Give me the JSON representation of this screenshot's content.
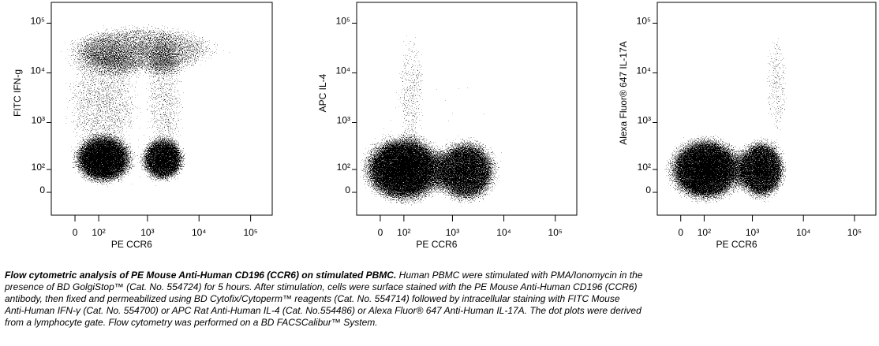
{
  "chart_data": [
    {
      "type": "scatter",
      "xlabel": "PE CCR6",
      "ylabel": "FITC IFN-g",
      "scale": "logicle",
      "xlim": [
        -100,
        262144
      ],
      "ylim": [
        -100,
        262144
      ],
      "xticks": [
        0,
        {
          "value": 100,
          "label": "10²"
        },
        {
          "value": 1000,
          "label": "10³"
        },
        {
          "value": 10000,
          "label": "10⁴"
        },
        {
          "value": 100000,
          "label": "10⁵"
        }
      ],
      "yticks": [
        0,
        {
          "value": 100,
          "label": "10²"
        },
        {
          "value": 1000,
          "label": "10³"
        },
        {
          "value": 10000,
          "label": "10⁴"
        },
        {
          "value": 100000,
          "label": "10⁵"
        }
      ],
      "populations": [
        {
          "x": 130,
          "y": 170
        },
        {
          "x": 2000,
          "y": 170
        },
        {
          "x": 800,
          "y": 30000
        },
        {
          "x": 120,
          "y": 3000
        },
        {
          "x": 2200,
          "y": 3000
        },
        {
          "x": 400,
          "y": 800
        }
      ]
    },
    {
      "type": "scatter",
      "xlabel": "PE CCR6",
      "ylabel": "APC IL-4",
      "scale": "logicle",
      "xlim": [
        -100,
        262144
      ],
      "ylim": [
        -100,
        262144
      ],
      "xticks": [
        0,
        {
          "value": 100,
          "label": "10²"
        },
        {
          "value": 1000,
          "label": "10³"
        },
        {
          "value": 10000,
          "label": "10⁴"
        },
        {
          "value": 100000,
          "label": "10⁵"
        }
      ],
      "yticks": [
        0,
        {
          "value": 100,
          "label": "10²"
        },
        {
          "value": 1000,
          "label": "10³"
        },
        {
          "value": 10000,
          "label": "10⁴"
        },
        {
          "value": 100000,
          "label": "10⁵"
        }
      ],
      "populations": [
        {
          "x": 100,
          "y": 100
        },
        {
          "x": 1800,
          "y": 90
        },
        {
          "x": 150,
          "y": 6000
        },
        {
          "x": 600,
          "y": 600
        }
      ]
    },
    {
      "type": "scatter",
      "xlabel": "PE CCR6",
      "ylabel": "Alexa Fluor® 647 IL-17A",
      "scale": "logicle",
      "xlim": [
        -100,
        262144
      ],
      "ylim": [
        -100,
        262144
      ],
      "xticks": [
        0,
        {
          "value": 100,
          "label": "10²"
        },
        {
          "value": 1000,
          "label": "10³"
        },
        {
          "value": 10000,
          "label": "10⁴"
        },
        {
          "value": 100000,
          "label": "10⁵"
        }
      ],
      "yticks": [
        0,
        {
          "value": 100,
          "label": "10²"
        },
        {
          "value": 1000,
          "label": "10³"
        },
        {
          "value": 10000,
          "label": "10⁴"
        },
        {
          "value": 100000,
          "label": "10⁵"
        }
      ],
      "populations": [
        {
          "x": 110,
          "y": 100
        },
        {
          "x": 1500,
          "y": 100
        },
        {
          "x": 3000,
          "y": 6000
        }
      ]
    }
  ],
  "caption": {
    "title": "Flow cytometric analysis of PE Mouse Anti-Human CD196 (CCR6) on stimulated PBMC.",
    "lines": [
      "Human PBMC were stimulated with PMA/Ionomycin in the",
      "presence of BD GolgiStop™ (Cat. No. 554724) for 5 hours. After stimulation, cells were surface stained with the PE Mouse Anti-Human CD196 (CCR6)",
      "antibody, then fixed and permeabilized using BD Cytofix/Cytoperm™ reagents (Cat. No. 554714) followed by intracellular staining with FITC Mouse",
      "Anti-Human IFN-γ (Cat. No. 554700) or APC Rat Anti-Human IL-4 (Cat. No.554486) or Alexa Fluor® 647 Anti-Human IL-17A. The dot plots were derived",
      "from a lymphocyte gate. Flow cytometry was performed on a BD FACSCalibur™ System."
    ]
  }
}
